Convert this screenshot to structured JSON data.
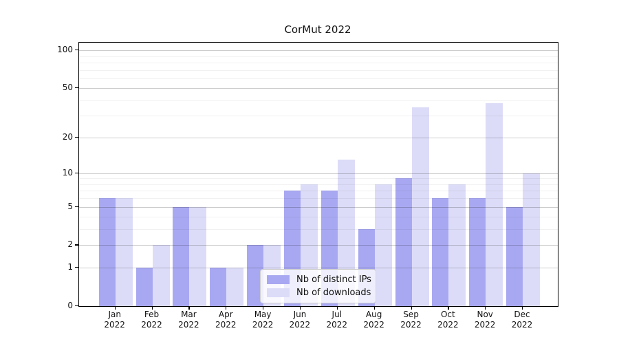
{
  "title": "CorMut 2022",
  "chart_data": {
    "type": "bar",
    "title": "CorMut 2022",
    "categories": [
      "Jan",
      "Feb",
      "Mar",
      "Apr",
      "May",
      "Jun",
      "Jul",
      "Aug",
      "Sep",
      "Oct",
      "Nov",
      "Dec"
    ],
    "year": "2022",
    "series": [
      {
        "name": "Nb of distinct IPs",
        "color": "#a8a8f2",
        "values": [
          6,
          1,
          5,
          1,
          2,
          7,
          7,
          3,
          9,
          6,
          6,
          5
        ]
      },
      {
        "name": "Nb of downloads",
        "color": "#dcdcf8",
        "values": [
          6,
          2,
          5,
          1,
          2,
          8,
          13,
          8,
          35,
          8,
          38,
          10
        ]
      }
    ],
    "y_ticks": [
      0,
      1,
      2,
      5,
      10,
      20,
      50,
      100
    ],
    "y_minor_gridlines": [
      3,
      4,
      6,
      7,
      8,
      9,
      30,
      40,
      60,
      70,
      80,
      90
    ],
    "y_scale": "log10(1+x)",
    "ylim": [
      0,
      115
    ],
    "grid": true,
    "legend_position": "inside lower center"
  }
}
